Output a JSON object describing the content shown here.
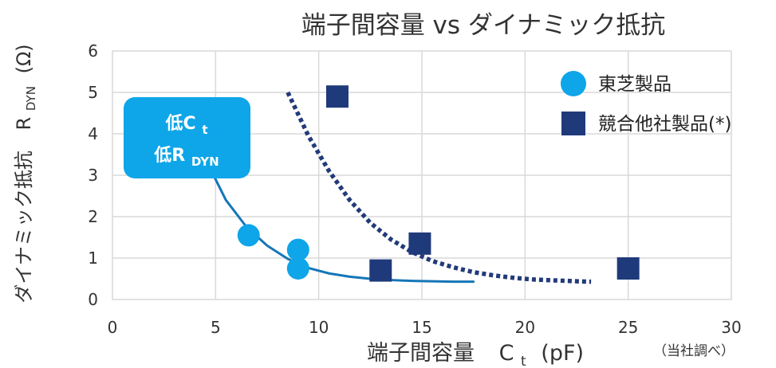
{
  "chart_data": {
    "type": "scatter",
    "title": "端子間容量 vs ダイナミック抵抗",
    "xlabel_main": "端子間容量",
    "xlabel_sym": "C",
    "xlabel_sub": "t",
    "xlabel_unit": "(pF)",
    "ylabel_main": "ダイナミック抵抗",
    "ylabel_sym": "R",
    "ylabel_sub": "DYN",
    "ylabel_unit": "(Ω)",
    "xlim": [
      0,
      30
    ],
    "ylim": [
      0,
      6
    ],
    "xticks": [
      0,
      5,
      10,
      15,
      20,
      25,
      30
    ],
    "yticks": [
      0,
      1,
      2,
      3,
      4,
      5,
      6
    ],
    "grid": true,
    "legend_position": "top-right",
    "note": "（当社調べ）",
    "series": [
      {
        "name": "東芝製品",
        "marker": "circle",
        "color": "#0EA5E9",
        "points": [
          [
            6.6,
            1.55
          ],
          [
            9.0,
            1.2
          ],
          [
            9.0,
            0.75
          ]
        ]
      },
      {
        "name": "競合他社製品(*)",
        "marker": "square",
        "color": "#1F3A7A",
        "points": [
          [
            10.9,
            4.9
          ],
          [
            14.9,
            1.35
          ],
          [
            13.0,
            0.7
          ],
          [
            25.0,
            0.75
          ]
        ]
      }
    ],
    "trend_lines": [
      {
        "style": "solid",
        "color": "#1576B8",
        "points": [
          [
            4.8,
            3.1
          ],
          [
            5.5,
            2.4
          ],
          [
            6.5,
            1.75
          ],
          [
            7.5,
            1.3
          ],
          [
            8.5,
            0.98
          ],
          [
            9.5,
            0.76
          ],
          [
            10.5,
            0.63
          ],
          [
            11.5,
            0.55
          ],
          [
            12.5,
            0.5
          ],
          [
            13.5,
            0.47
          ],
          [
            14.5,
            0.45
          ],
          [
            15.5,
            0.44
          ],
          [
            16.5,
            0.43
          ],
          [
            17.5,
            0.43
          ]
        ]
      },
      {
        "style": "dotted",
        "color": "#223A7A",
        "points": [
          [
            8.5,
            5.0
          ],
          [
            9.5,
            3.95
          ],
          [
            10.5,
            3.1
          ],
          [
            11.5,
            2.4
          ],
          [
            12.5,
            1.85
          ],
          [
            13.5,
            1.45
          ],
          [
            14.5,
            1.15
          ],
          [
            15.5,
            0.93
          ],
          [
            16.5,
            0.78
          ],
          [
            17.5,
            0.66
          ],
          [
            18.5,
            0.58
          ],
          [
            19.5,
            0.52
          ],
          [
            20.5,
            0.48
          ],
          [
            21.5,
            0.46
          ],
          [
            22.5,
            0.44
          ],
          [
            23.2,
            0.43
          ]
        ]
      }
    ],
    "callout": {
      "line1_main": "低C",
      "line1_sub": "t",
      "line2_main": "低R",
      "line2_sub": "DYN",
      "color": "#0EA5E9"
    }
  }
}
